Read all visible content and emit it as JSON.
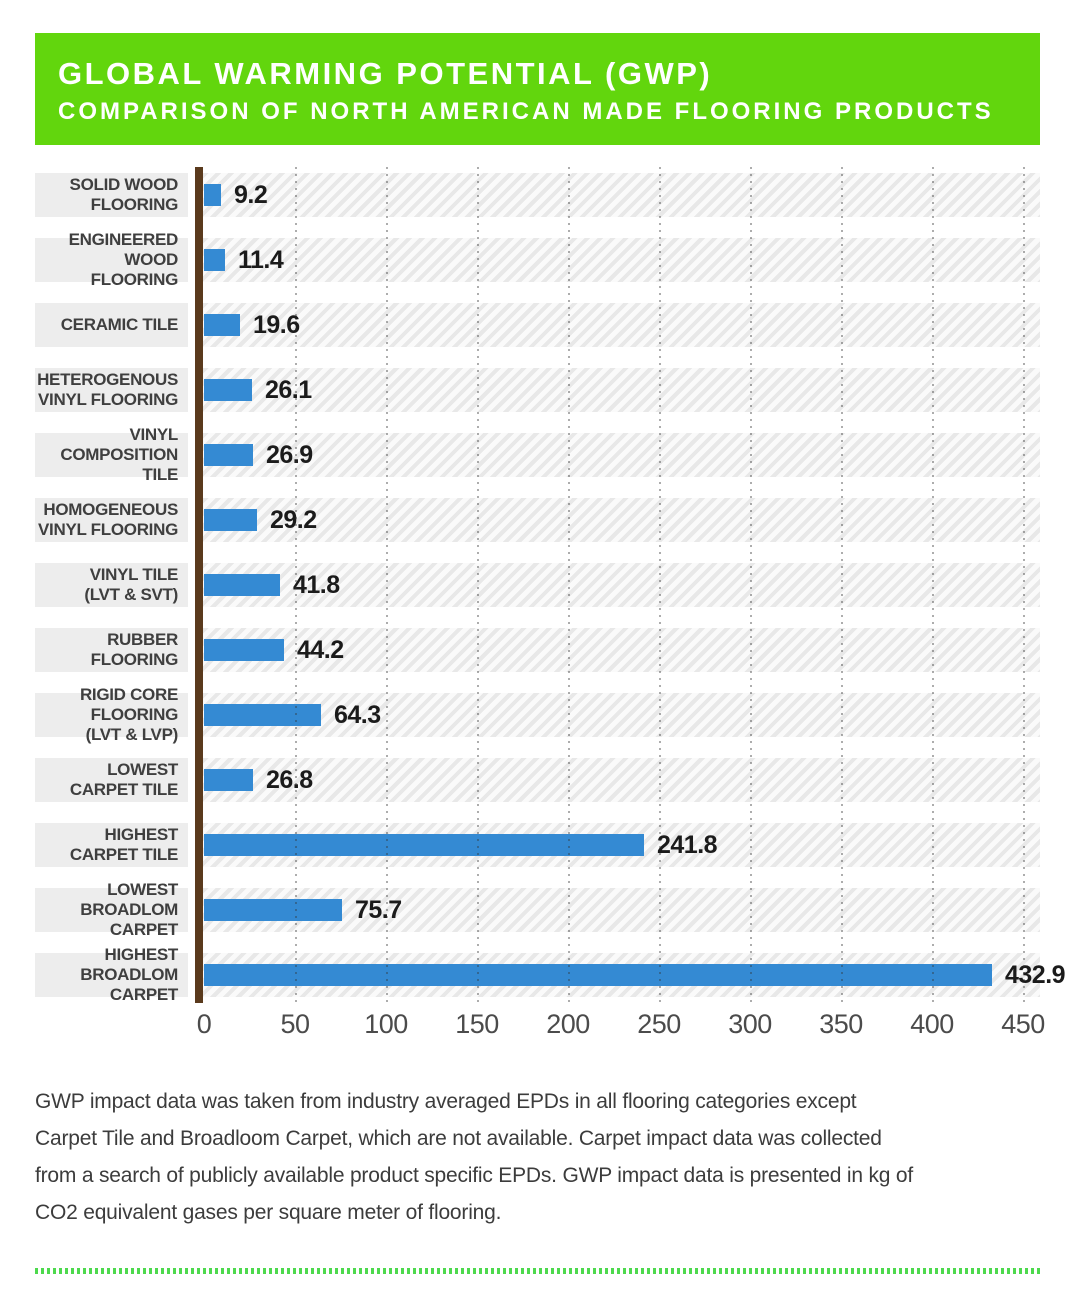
{
  "header": {
    "title": "GLOBAL WARMING POTENTIAL (GWP)",
    "subtitle": "COMPARISON OF NORTH AMERICAN MADE FLOORING PRODUCTS"
  },
  "chart_data": {
    "type": "bar",
    "orientation": "horizontal",
    "title": "GLOBAL WARMING POTENTIAL (GWP) — COMPARISON OF NORTH AMERICAN MADE FLOORING PRODUCTS",
    "categories": [
      "SOLID WOOD FLOORING",
      "ENGINEERED WOOD FLOORING",
      "CERAMIC TILE",
      "HETEROGENOUS VINYL FLOORING",
      "VINYL COMPOSITION TILE",
      "HOMOGENEOUS VINYL FLOORING",
      "VINYL TILE (LVT & SVT)",
      "RUBBER FLOORING",
      "RIGID CORE FLOORING (LVT & LVP)",
      "LOWEST CARPET TILE",
      "HIGHEST CARPET TILE",
      "LOWEST BROADLOM CARPET",
      "HIGHEST BROADLOM CARPET"
    ],
    "category_label_lines": [
      [
        "SOLID WOOD",
        "FLOORING"
      ],
      [
        "ENGINEERED",
        "WOOD FLOORING"
      ],
      [
        "CERAMIC TILE"
      ],
      [
        "HETEROGENOUS",
        "VINYL FLOORING"
      ],
      [
        "VINYL",
        "COMPOSITION TILE"
      ],
      [
        "HOMOGENEOUS",
        "VINYL FLOORING"
      ],
      [
        "VINYL TILE",
        "(LVT & SVT)"
      ],
      [
        "RUBBER FLOORING"
      ],
      [
        "RIGID CORE FLOORING",
        "(LVT & LVP)"
      ],
      [
        "LOWEST",
        "CARPET TILE"
      ],
      [
        "HIGHEST",
        "CARPET TILE"
      ],
      [
        "LOWEST",
        "BROADLOM CARPET"
      ],
      [
        "HIGHEST",
        "BROADLOM CARPET"
      ]
    ],
    "values": [
      9.2,
      11.4,
      19.6,
      26.1,
      26.9,
      29.2,
      41.8,
      44.2,
      64.3,
      26.8,
      241.8,
      75.7,
      432.9
    ],
    "value_labels": [
      "9.2",
      "11.4",
      "19.6",
      "26.1",
      "26.9",
      "29.2",
      "41.8",
      "44.2",
      "64.3",
      "26.8",
      "241.8",
      "75.7",
      "432.9"
    ],
    "xlabel": "",
    "ylabel": "",
    "xlim": [
      0,
      450
    ],
    "x_ticks": [
      0,
      50,
      100,
      150,
      200,
      250,
      300,
      350,
      400,
      450
    ],
    "grid": "dotted vertical gridlines every 50",
    "legend": "none",
    "units": "kg CO2 equivalent gases per square meter of flooring"
  },
  "footer": {
    "text": "GWP impact data was taken from industry averaged EPDs in all flooring categories except\nCarpet Tile and Broadloom Carpet, which are not available. Carpet impact data was collected\nfrom a search of publicly available product specific EPDs. GWP impact data is presented in kg of\nCO2 equivalent gases per square meter of flooring."
  },
  "colors": {
    "header_bg": "#62d60d",
    "bar": "#348ad3",
    "axis_line": "#5a3a1d",
    "label_band": "#ededed",
    "hatch_stripe": "#e8e8e8",
    "dotted_rule": "#4dd94d",
    "header_text": "#ffffff",
    "body_text": "#3c3c3c"
  }
}
